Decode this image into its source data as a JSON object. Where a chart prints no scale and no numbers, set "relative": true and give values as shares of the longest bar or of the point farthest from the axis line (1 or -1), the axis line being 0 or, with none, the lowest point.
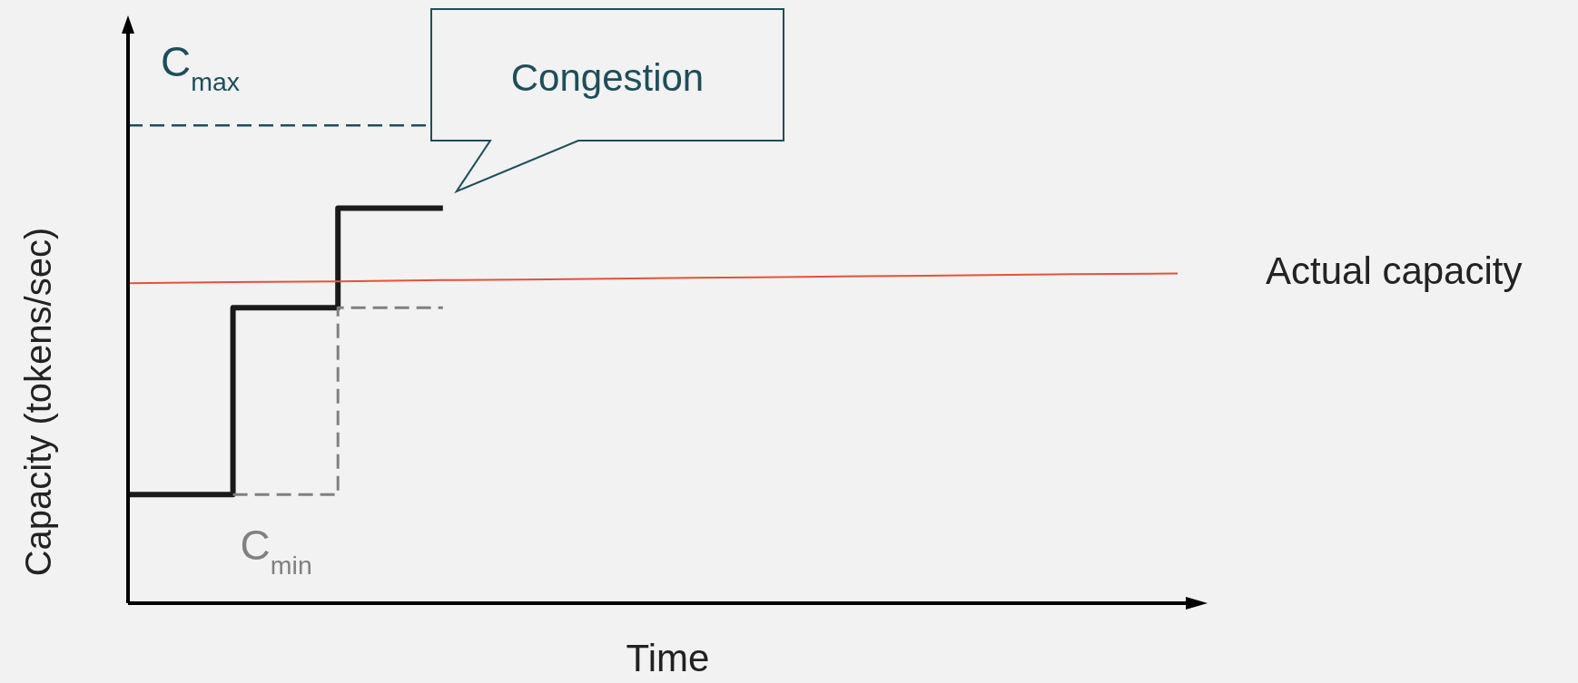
{
  "chart_data": {
    "type": "step",
    "relative": true,
    "xlabel": "Time",
    "ylabel": "Capacity (tokens/sec)",
    "categories": [
      null,
      null,
      null,
      null,
      null,
      null,
      null,
      null,
      null,
      null,
      null
    ],
    "series": [
      {
        "color": "#1a1a1a",
        "values": [
          0.275,
          0.748,
          1,
          1,
          null,
          null,
          null,
          null,
          null,
          null,
          null
        ]
      },
      {
        "color": "#808080",
        "line_style": "dashed",
        "values": [
          null,
          0.275,
          0.748,
          0.748,
          null,
          null,
          null,
          null,
          null,
          null,
          null
        ]
      },
      {
        "type": "line",
        "name": "Actual capacity",
        "color": "#e8513a",
        "values": [
          0.81,
          0.813,
          0.815,
          0.818,
          0.82,
          0.823,
          0.825,
          0.828,
          0.83,
          0.833,
          0.835
        ]
      }
    ],
    "ref_lines": [
      {
        "axis": "y",
        "value": 1.21,
        "label": "C$_{max}$",
        "color": "#1d4e5a",
        "line_style": "dashed"
      }
    ],
    "annotations": [
      "Congestion",
      {
        "text": "C$_{min}$",
        "y": 0.275
      }
    ]
  }
}
